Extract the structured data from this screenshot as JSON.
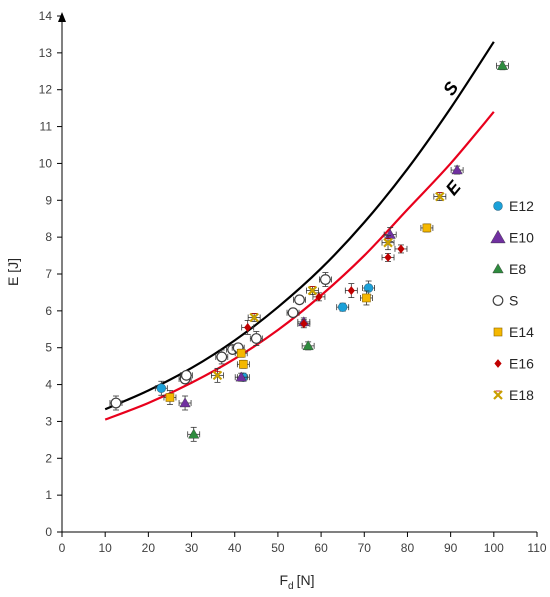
{
  "chart_data": {
    "type": "scatter",
    "title": "",
    "xlabel": {
      "main": "F",
      "sub": "d",
      "unit": "[N]"
    },
    "ylabel": "E [J]",
    "xlim": [
      0,
      110
    ],
    "ylim": [
      0,
      14
    ],
    "xticks": [
      0,
      10,
      20,
      30,
      40,
      50,
      60,
      70,
      80,
      90,
      100,
      110
    ],
    "yticks": [
      0,
      1,
      2,
      3,
      4,
      5,
      6,
      7,
      8,
      9,
      10,
      11,
      12,
      13,
      14
    ],
    "grid": false,
    "legend_position": "right",
    "fits": [
      {
        "label": "S",
        "color": "#000000",
        "points": [
          [
            10,
            3.33
          ],
          [
            20,
            3.84
          ],
          [
            30,
            4.45
          ],
          [
            40,
            5.2
          ],
          [
            50,
            6.1
          ],
          [
            60,
            7.15
          ],
          [
            70,
            8.4
          ],
          [
            80,
            9.85
          ],
          [
            90,
            11.5
          ],
          [
            100,
            13.3
          ]
        ]
      },
      {
        "label": "E",
        "color": "#e8001c",
        "points": [
          [
            10,
            3.05
          ],
          [
            20,
            3.5
          ],
          [
            30,
            4.05
          ],
          [
            40,
            4.7
          ],
          [
            50,
            5.48
          ],
          [
            60,
            6.42
          ],
          [
            70,
            7.5
          ],
          [
            80,
            8.75
          ],
          [
            90,
            10.0
          ],
          [
            100,
            11.4
          ]
        ]
      }
    ],
    "series": [
      {
        "name": "E12",
        "marker": "circle",
        "color": "#1ba1d9",
        "points": [
          [
            23,
            3.9
          ],
          [
            42,
            4.2
          ],
          [
            65,
            6.1
          ],
          [
            71,
            6.62
          ]
        ]
      },
      {
        "name": "E10",
        "marker": "triangle",
        "color": "#7030a0",
        "points": [
          [
            28.5,
            3.5
          ],
          [
            41.5,
            4.2
          ],
          [
            56,
            5.7
          ],
          [
            76,
            8.07
          ],
          [
            91.5,
            9.82
          ]
        ]
      },
      {
        "name": "E8",
        "marker": "triangle",
        "color": "#2e8b3e",
        "points": [
          [
            30.5,
            2.65
          ],
          [
            57,
            5.05
          ],
          [
            102,
            12.65
          ]
        ]
      },
      {
        "name": "S",
        "marker": "open-circle",
        "color": "#404040",
        "points": [
          [
            12.5,
            3.5
          ],
          [
            28.5,
            4.15
          ],
          [
            28.8,
            4.25
          ],
          [
            37,
            4.75
          ],
          [
            39.5,
            4.95
          ],
          [
            40.8,
            5.0
          ],
          [
            45,
            5.25
          ],
          [
            53.5,
            5.95
          ],
          [
            55,
            6.3
          ],
          [
            61,
            6.85
          ]
        ]
      },
      {
        "name": "E14",
        "marker": "square",
        "color": "#f5b800",
        "points": [
          [
            25,
            3.65
          ],
          [
            41.5,
            4.85
          ],
          [
            42,
            4.55
          ],
          [
            70.5,
            6.35
          ],
          [
            84.5,
            8.25
          ]
        ]
      },
      {
        "name": "E16",
        "marker": "diamond",
        "color": "#c00000",
        "points": [
          [
            43,
            5.55
          ],
          [
            56,
            5.65
          ],
          [
            59.5,
            6.38
          ],
          [
            67,
            6.55
          ],
          [
            75.5,
            7.45
          ],
          [
            78.5,
            7.68
          ]
        ]
      },
      {
        "name": "E18",
        "marker": "x",
        "color": "#c9a000",
        "points": [
          [
            36,
            4.25
          ],
          [
            44.5,
            5.82
          ],
          [
            58,
            6.55
          ],
          [
            75.5,
            7.85
          ],
          [
            87.5,
            9.1
          ]
        ]
      }
    ]
  }
}
